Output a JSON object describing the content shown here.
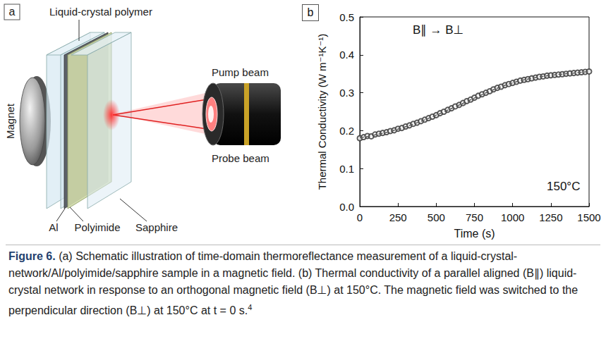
{
  "figure": {
    "label": "Figure 6.",
    "caption": "(a) Schematic illustration of time-domain thermoreflectance measurement of a liquid-crystal-network/Al/polyimide/sapphire sample in a magnetic field. (b) Thermal conductivity of a parallel aligned (B∥) liquid-crystal network in response to an orthogonal magnetic field (B⊥) at 150°C. The magnetic field was switched to the perpendicular direction (B⊥) at 150°C at t = 0 s.",
    "caption_reference": "4"
  },
  "panel_a": {
    "letter": "a",
    "labels": {
      "polymer": "Liquid-crystal polymer",
      "magnet": "Magnet",
      "pump": "Pump beam",
      "probe": "Probe beam",
      "al": "Al",
      "polyimide": "Polyimide",
      "sapphire": "Sapphire"
    }
  },
  "panel_b": {
    "letter": "b"
  },
  "chart_data": {
    "type": "scatter",
    "x_label": "Time (s)",
    "y_label": "Thermal Conductivity (W m⁻¹K⁻¹)",
    "annotations": [
      "B∥ → B⊥",
      "150°C"
    ],
    "x": [
      0,
      25,
      50,
      75,
      100,
      125,
      150,
      175,
      200,
      225,
      250,
      275,
      300,
      325,
      350,
      375,
      400,
      425,
      450,
      475,
      500,
      525,
      550,
      575,
      600,
      625,
      650,
      675,
      700,
      725,
      750,
      775,
      800,
      825,
      850,
      875,
      900,
      925,
      950,
      975,
      1000,
      1025,
      1050,
      1075,
      1100,
      1125,
      1150,
      1175,
      1200,
      1225,
      1250,
      1275,
      1300,
      1325,
      1350,
      1375,
      1400,
      1425,
      1450,
      1475,
      1500
    ],
    "series": [
      {
        "type": "scatter",
        "color": "#333333",
        "marker": "circle-open",
        "values": [
          0.18,
          0.183,
          0.186,
          0.185,
          0.19,
          0.192,
          0.194,
          0.196,
          0.199,
          0.201,
          0.205,
          0.207,
          0.211,
          0.214,
          0.218,
          0.221,
          0.225,
          0.229,
          0.233,
          0.237,
          0.241,
          0.246,
          0.25,
          0.255,
          0.259,
          0.264,
          0.268,
          0.273,
          0.278,
          0.282,
          0.287,
          0.292,
          0.296,
          0.3,
          0.304,
          0.309,
          0.313,
          0.316,
          0.32,
          0.323,
          0.326,
          0.329,
          0.332,
          0.334,
          0.336,
          0.338,
          0.34,
          0.342,
          0.343,
          0.345,
          0.346,
          0.347,
          0.348,
          0.349,
          0.35,
          0.351,
          0.352,
          0.353,
          0.354,
          0.355,
          0.356
        ]
      },
      {
        "type": "line",
        "color": "#555555",
        "line_style": "dashed",
        "x": [
          0,
          125,
          250,
          375,
          500,
          625,
          750,
          875,
          1000,
          1125,
          1250,
          1375,
          1500
        ],
        "values": [
          0.181,
          0.191,
          0.204,
          0.221,
          0.241,
          0.263,
          0.286,
          0.308,
          0.326,
          0.338,
          0.346,
          0.351,
          0.356
        ]
      }
    ],
    "xlim": [
      0,
      1500
    ],
    "xticks": [
      0,
      250,
      500,
      750,
      1000,
      1250,
      1500
    ],
    "ylim": [
      0,
      0.5
    ],
    "yticks": [
      {
        "value": 0,
        "label": "0.0"
      },
      0.1,
      0.2,
      0.3,
      0.4,
      0.5
    ],
    "grid": false
  }
}
